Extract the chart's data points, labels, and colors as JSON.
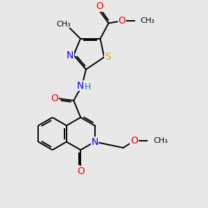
{
  "background_color": "#e8e8e8",
  "atom_colors": {
    "C": "#000000",
    "N": "#0000ff",
    "O": "#ff0000",
    "S": "#ccaa00",
    "H": "#008888"
  },
  "bond_color": "#000000",
  "bond_width": 1.4,
  "font_size": 10,
  "figsize": [
    3.0,
    3.0
  ],
  "dpi": 100,
  "xlim": [
    0,
    10
  ],
  "ylim": [
    0,
    10
  ]
}
